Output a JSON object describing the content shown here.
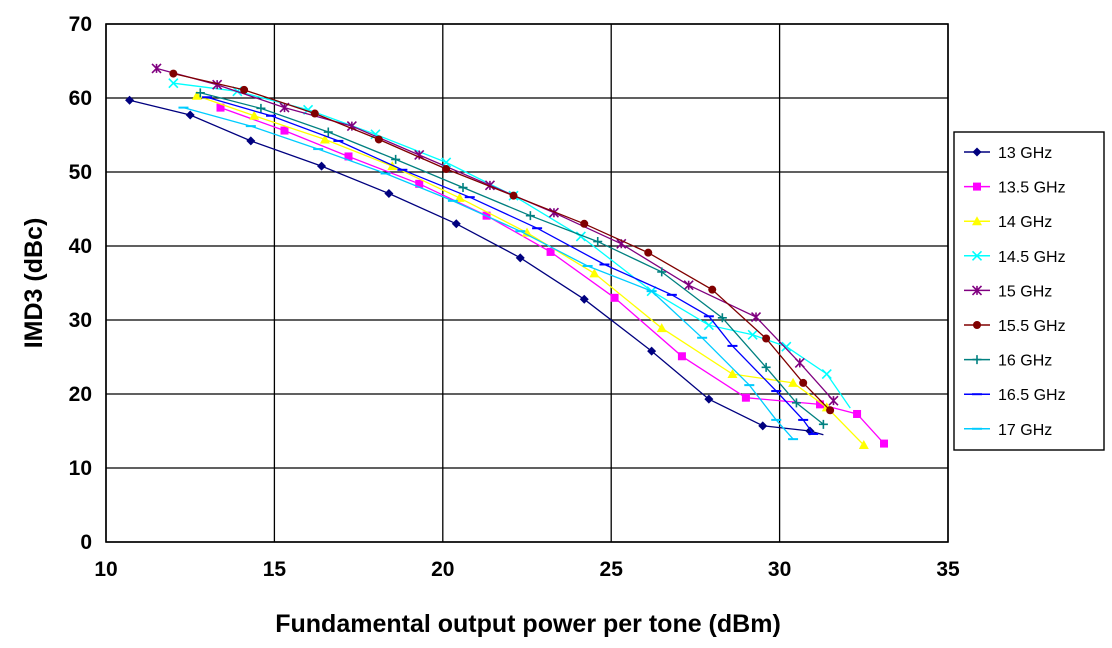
{
  "chart_data": {
    "type": "line",
    "xlabel": "Fundamental output power per tone (dBm)",
    "ylabel": "IMD3 (dBc)",
    "xlim": [
      10,
      35
    ],
    "ylim": [
      0,
      70
    ],
    "xticks": [
      10,
      15,
      20,
      25,
      30,
      35
    ],
    "yticks": [
      0,
      10,
      20,
      30,
      40,
      50,
      60,
      70
    ],
    "x_tick_labels": [
      "10",
      "15",
      "20",
      "25",
      "30",
      "35"
    ],
    "y_tick_labels": [
      "0",
      "10",
      "20",
      "30",
      "40",
      "50",
      "60",
      "70"
    ],
    "grid": "horizontal and vertical",
    "legend_position": "right",
    "series": [
      {
        "name": "13 GHz",
        "color": "#00007F",
        "marker": "diamond",
        "x": [
          10.7,
          12.5,
          14.3,
          16.4,
          18.4,
          20.4,
          22.3,
          24.2,
          26.2,
          27.9,
          29.5,
          30.9,
          31.3
        ],
        "y": [
          59.7,
          57.7,
          54.2,
          50.8,
          47.1,
          43.0,
          38.4,
          32.8,
          25.8,
          19.3,
          15.7,
          15.0,
          14.5
        ],
        "marked": [
          true,
          true,
          true,
          true,
          true,
          true,
          true,
          true,
          true,
          true,
          true,
          true,
          false
        ]
      },
      {
        "name": "13.5 GHz",
        "color": "#FF00FF",
        "marker": "square",
        "x": [
          13.4,
          15.3,
          17.2,
          19.3,
          21.3,
          23.2,
          25.1,
          27.1,
          29.0,
          31.2,
          32.3,
          33.1
        ],
        "y": [
          58.7,
          55.6,
          52.1,
          48.4,
          44.1,
          39.2,
          33.0,
          25.1,
          19.5,
          18.6,
          17.3,
          13.3
        ],
        "marked": [
          true,
          true,
          true,
          true,
          true,
          true,
          true,
          true,
          true,
          true,
          true,
          true
        ]
      },
      {
        "name": "14 GHz",
        "color": "#FFFF00",
        "marker": "triangle",
        "x": [
          12.7,
          14.4,
          16.5,
          18.5,
          20.5,
          22.5,
          24.5,
          26.5,
          28.6,
          30.4,
          31.4,
          32.5
        ],
        "y": [
          60.3,
          57.6,
          54.4,
          50.8,
          46.5,
          41.8,
          36.3,
          28.9,
          22.7,
          21.5,
          18.2,
          13.1
        ],
        "marked": [
          true,
          true,
          true,
          true,
          true,
          true,
          true,
          true,
          true,
          true,
          true,
          true
        ]
      },
      {
        "name": "14.5 GHz",
        "color": "#00FFFF",
        "marker": "x",
        "x": [
          12.0,
          13.9,
          16.0,
          18.0,
          20.1,
          22.1,
          24.1,
          26.2,
          27.9,
          29.2,
          30.2,
          31.4,
          32.1
        ],
        "y": [
          62.0,
          60.9,
          58.4,
          55.1,
          51.3,
          46.8,
          41.3,
          33.9,
          29.3,
          28.0,
          26.4,
          22.7,
          18.1
        ],
        "marked": [
          true,
          true,
          true,
          true,
          true,
          true,
          true,
          true,
          true,
          true,
          true,
          true,
          false
        ]
      },
      {
        "name": "15 GHz",
        "color": "#800080",
        "marker": "asterisk",
        "x": [
          11.5,
          13.3,
          15.3,
          17.3,
          19.3,
          21.4,
          23.3,
          25.3,
          27.3,
          29.3,
          30.6,
          31.6
        ],
        "y": [
          64.0,
          61.8,
          58.7,
          56.2,
          52.3,
          48.2,
          44.5,
          40.3,
          34.7,
          30.4,
          24.2,
          19.1
        ],
        "marked": [
          true,
          true,
          true,
          true,
          true,
          true,
          true,
          true,
          true,
          true,
          true,
          true
        ]
      },
      {
        "name": "15.5 GHz",
        "color": "#800000",
        "marker": "circle",
        "x": [
          12.0,
          14.1,
          16.2,
          18.1,
          20.1,
          22.1,
          24.2,
          26.1,
          28.0,
          29.6,
          30.7,
          31.5
        ],
        "y": [
          63.3,
          61.1,
          57.9,
          54.4,
          50.4,
          46.8,
          43.0,
          39.1,
          34.1,
          27.5,
          21.5,
          17.8
        ],
        "marked": [
          true,
          true,
          true,
          true,
          true,
          true,
          true,
          true,
          true,
          true,
          true,
          true
        ]
      },
      {
        "name": "16 GHz",
        "color": "#008080",
        "marker": "plus",
        "x": [
          12.8,
          14.6,
          16.6,
          18.6,
          20.6,
          22.6,
          24.6,
          26.5,
          28.3,
          29.6,
          30.5,
          31.3
        ],
        "y": [
          60.7,
          58.6,
          55.4,
          51.7,
          47.9,
          44.1,
          40.6,
          36.5,
          30.3,
          23.6,
          18.8,
          15.9
        ],
        "marked": [
          true,
          true,
          true,
          true,
          true,
          true,
          true,
          true,
          true,
          true,
          true,
          true
        ]
      },
      {
        "name": "16.5 GHz",
        "color": "#0000FF",
        "marker": "dash",
        "x": [
          13.0,
          14.9,
          16.9,
          18.8,
          20.8,
          22.8,
          24.8,
          26.8,
          27.9,
          28.6,
          29.9,
          30.7,
          31.0
        ],
        "y": [
          60.1,
          57.6,
          54.2,
          50.3,
          46.6,
          42.4,
          37.5,
          33.4,
          30.5,
          26.5,
          20.4,
          16.5,
          14.6
        ],
        "marked": [
          true,
          true,
          true,
          true,
          true,
          true,
          true,
          true,
          true,
          true,
          true,
          true,
          true
        ]
      },
      {
        "name": "17 GHz",
        "color": "#00CCFF",
        "marker": "dash",
        "x": [
          12.3,
          14.3,
          16.3,
          18.3,
          20.3,
          22.3,
          24.3,
          26.2,
          27.7,
          29.1,
          29.9,
          30.4
        ],
        "y": [
          58.7,
          56.2,
          53.1,
          49.8,
          46.1,
          42.0,
          37.3,
          33.9,
          27.6,
          21.2,
          16.5,
          13.9
        ],
        "marked": [
          true,
          true,
          true,
          true,
          true,
          true,
          true,
          true,
          true,
          true,
          true,
          true
        ]
      }
    ]
  }
}
